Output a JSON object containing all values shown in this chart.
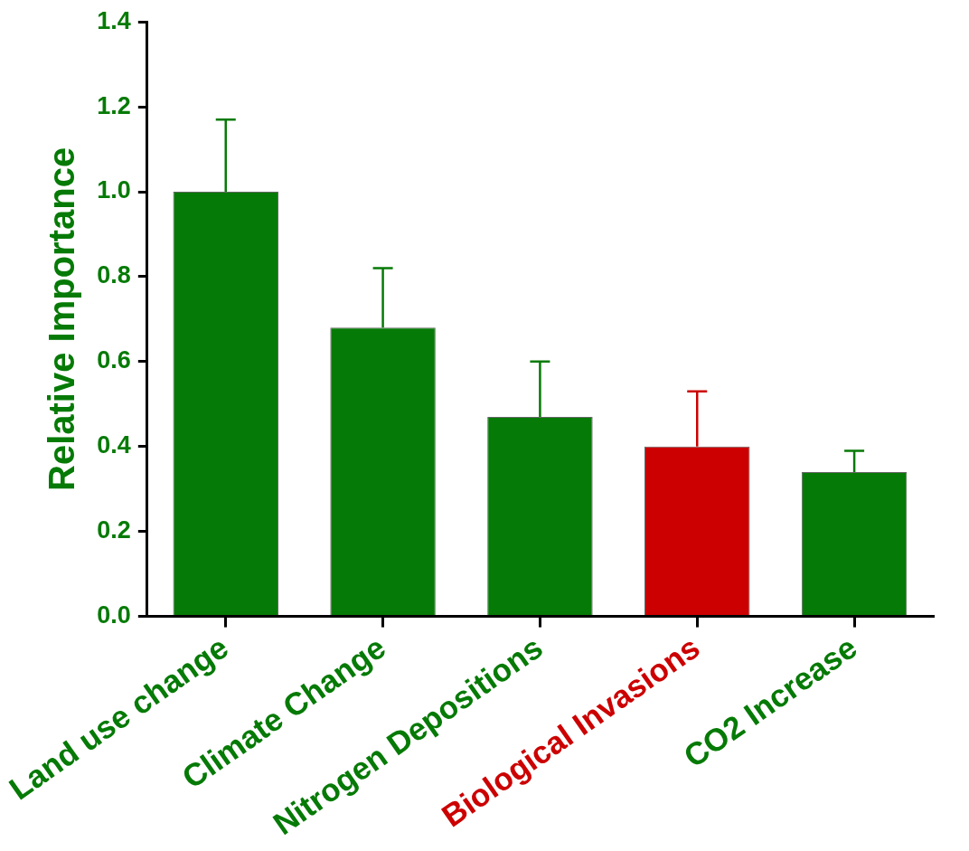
{
  "chart_data": {
    "type": "bar",
    "ylabel": "Relative Importance",
    "categories": [
      "Land use change",
      "Climate Change",
      "Nitrogen Depositions",
      "Biological Invasions",
      "CO2 Increase"
    ],
    "values": [
      1.0,
      0.68,
      0.47,
      0.4,
      0.34
    ],
    "colors": [
      "#067a06",
      "#067a06",
      "#067a06",
      "#cc0000",
      "#067a06"
    ],
    "errors": [
      [
        1.0,
        1.17
      ],
      [
        0.68,
        0.82
      ],
      [
        0.47,
        0.6
      ],
      [
        0.4,
        0.53
      ],
      [
        0.34,
        0.39
      ]
    ],
    "ylim": [
      0,
      1.4
    ],
    "yticks": [
      {
        "value": 0,
        "label": "0.0"
      },
      0.2,
      0.4,
      0.6,
      0.8,
      {
        "value": 1,
        "label": "1.0"
      },
      1.2,
      1.4
    ],
    "grid": false,
    "legend": false
  }
}
